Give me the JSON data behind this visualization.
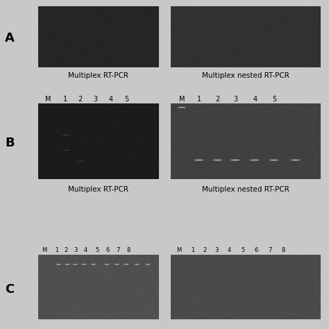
{
  "background_color": "#c8c8c8",
  "panel_labels": [
    "A",
    "B",
    "C"
  ],
  "panel_label_fontsize": 13,
  "sublabel_A_left": "Multiplex RT-PCR",
  "sublabel_A_right": "Multiplex nested RT-PCR",
  "sublabel_B_left": "Multiplex RT-PCR",
  "sublabel_B_right": "Multiplex nested RT-PCR",
  "lane_labels_B": [
    "M",
    "1",
    "2",
    "3",
    "4",
    "5"
  ],
  "lane_labels_C": [
    "M",
    "1",
    "2",
    "3",
    "4",
    "5",
    "6",
    "7",
    "8"
  ]
}
